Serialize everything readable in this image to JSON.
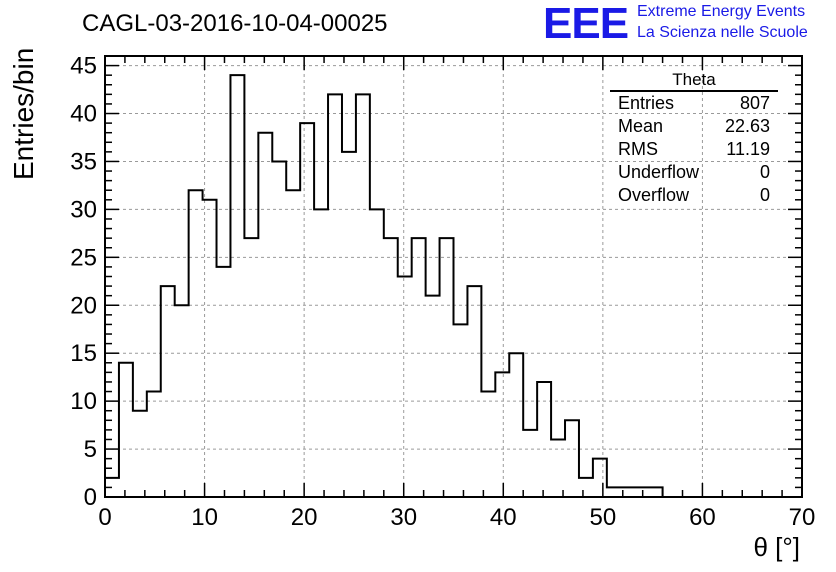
{
  "chart_data": {
    "type": "bar",
    "title": "CAGL-03-2016-10-04-00025",
    "xlabel": "θ [°]",
    "ylabel": "Entries/bin",
    "xlim": [
      0,
      70
    ],
    "ylim": [
      0,
      46
    ],
    "grid": true,
    "bin_width": 1.4,
    "bin_edges_start": 0,
    "values": [
      2,
      14,
      9,
      11,
      22,
      20,
      32,
      31,
      24,
      44,
      27,
      38,
      35,
      32,
      39,
      30,
      42,
      36,
      42,
      30,
      27,
      23,
      27,
      21,
      27,
      18,
      22,
      11,
      13,
      15,
      7,
      12,
      6,
      8,
      2,
      4,
      1,
      1,
      1,
      1
    ],
    "x_ticks": [
      "0",
      "10",
      "20",
      "30",
      "40",
      "50",
      "60",
      "70"
    ],
    "y_ticks": [
      "0",
      "5",
      "10",
      "15",
      "20",
      "25",
      "30",
      "35",
      "40",
      "45"
    ],
    "stats": {
      "name": "Theta",
      "rows": [
        {
          "label": "Entries",
          "value": "807"
        },
        {
          "label": "Mean",
          "value": "22.63"
        },
        {
          "label": "RMS",
          "value": "11.19"
        },
        {
          "label": "Underflow",
          "value": "0"
        },
        {
          "label": "Overflow",
          "value": "0"
        }
      ]
    }
  },
  "logo": {
    "mark": "EEE",
    "line1": "Extreme Energy Events",
    "line2": "La Scienza nelle Scuole",
    "color": "#1a1ae6"
  }
}
